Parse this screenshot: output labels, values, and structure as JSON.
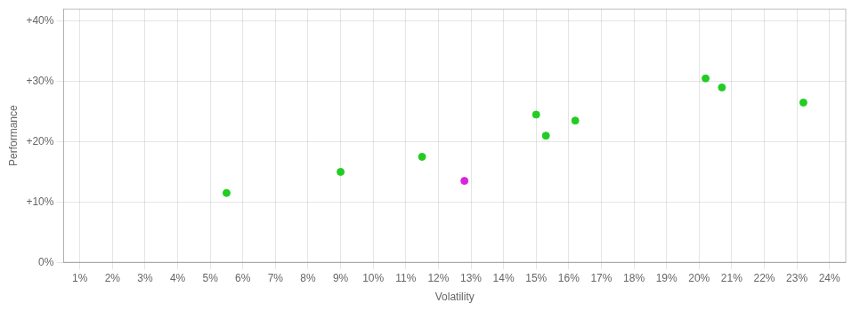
{
  "chart_data": {
    "type": "scatter",
    "xlabel": "Volatility",
    "ylabel": "Performance",
    "xlim": [
      0.5,
      24.5
    ],
    "ylim": [
      0,
      42
    ],
    "xticks": [
      {
        "value": 1,
        "label": "1%"
      },
      {
        "value": 2,
        "label": "2%"
      },
      {
        "value": 3,
        "label": "3%"
      },
      {
        "value": 4,
        "label": "4%"
      },
      {
        "value": 5,
        "label": "5%"
      },
      {
        "value": 6,
        "label": "6%"
      },
      {
        "value": 7,
        "label": "7%"
      },
      {
        "value": 8,
        "label": "8%"
      },
      {
        "value": 9,
        "label": "9%"
      },
      {
        "value": 10,
        "label": "10%"
      },
      {
        "value": 11,
        "label": "11%"
      },
      {
        "value": 12,
        "label": "12%"
      },
      {
        "value": 13,
        "label": "13%"
      },
      {
        "value": 14,
        "label": "14%"
      },
      {
        "value": 15,
        "label": "15%"
      },
      {
        "value": 16,
        "label": "16%"
      },
      {
        "value": 17,
        "label": "17%"
      },
      {
        "value": 18,
        "label": "18%"
      },
      {
        "value": 19,
        "label": "19%"
      },
      {
        "value": 20,
        "label": "20%"
      },
      {
        "value": 21,
        "label": "21%"
      },
      {
        "value": 22,
        "label": "22%"
      },
      {
        "value": 23,
        "label": "23%"
      },
      {
        "value": 24,
        "label": "24%"
      }
    ],
    "yticks": [
      {
        "value": 0,
        "label": "0%"
      },
      {
        "value": 10,
        "label": "+10%"
      },
      {
        "value": 20,
        "label": "+20%"
      },
      {
        "value": 30,
        "label": "+30%"
      },
      {
        "value": 40,
        "label": "+40%"
      }
    ],
    "grid": true,
    "series": [
      {
        "color": "#22cc22",
        "x": [
          5.5,
          9.0,
          11.5,
          15.0,
          15.3,
          16.2,
          20.2,
          20.7,
          23.2
        ],
        "values": [
          11.5,
          15.0,
          17.5,
          24.5,
          21.0,
          23.5,
          30.5,
          29.0,
          26.5
        ]
      },
      {
        "color": "#dd22dd",
        "x": [
          12.8
        ],
        "values": [
          13.5
        ]
      }
    ]
  }
}
